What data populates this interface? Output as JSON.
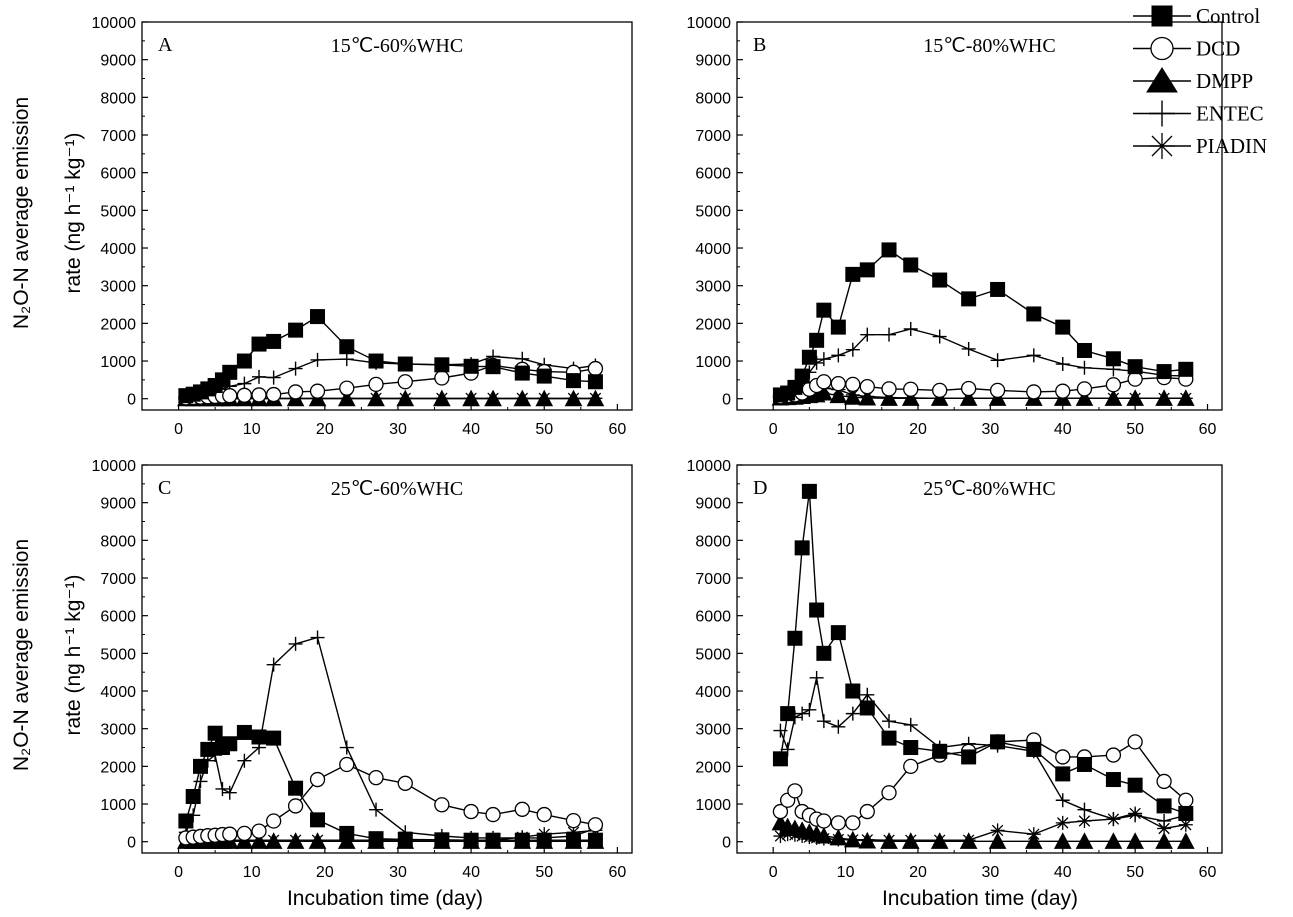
{
  "figure": {
    "ylabel_line1": "N₂O-N average emission",
    "ylabel_line2": "rate (ng h⁻¹ kg⁻¹)",
    "xlabel": "Incubation time (day)"
  },
  "legend": [
    {
      "name": "Control",
      "marker": "filled-square"
    },
    {
      "name": "DCD",
      "marker": "open-circle"
    },
    {
      "name": "DMPP",
      "marker": "filled-triangle"
    },
    {
      "name": "ENTEC",
      "marker": "plus"
    },
    {
      "name": "PIADIN",
      "marker": "asterisk"
    }
  ],
  "chart_data": [
    {
      "type": "line",
      "panel": "A",
      "title": "15℃-60%WHC",
      "xlabel": "Incubation time (day)",
      "ylabel": "N₂O-N average emission rate (ng h⁻¹ kg⁻¹)",
      "xlim": [
        -5,
        62
      ],
      "ylim": [
        -300,
        10000
      ],
      "xticks": [
        0,
        10,
        20,
        30,
        40,
        50,
        60
      ],
      "yticks": [
        0,
        1000,
        2000,
        3000,
        4000,
        5000,
        6000,
        7000,
        8000,
        9000,
        10000
      ],
      "series": [
        {
          "name": "Control",
          "x": [
            1,
            2,
            3,
            4,
            5,
            6,
            7,
            9,
            11,
            13,
            16,
            19,
            23,
            27,
            31,
            36,
            40,
            43,
            47,
            50,
            54,
            57
          ],
          "y": [
            80,
            120,
            180,
            260,
            350,
            500,
            700,
            1000,
            1450,
            1520,
            1820,
            2180,
            1380,
            1000,
            920,
            900,
            860,
            850,
            680,
            600,
            480,
            450
          ]
        },
        {
          "name": "DCD",
          "x": [
            1,
            2,
            3,
            4,
            5,
            6,
            7,
            9,
            11,
            13,
            16,
            19,
            23,
            27,
            31,
            36,
            40,
            43,
            47,
            50,
            54,
            57
          ],
          "y": [
            20,
            30,
            40,
            50,
            60,
            70,
            80,
            90,
            100,
            110,
            180,
            200,
            280,
            380,
            450,
            550,
            680,
            880,
            780,
            720,
            700,
            800
          ]
        },
        {
          "name": "DMPP",
          "x": [
            1,
            2,
            3,
            4,
            5,
            6,
            7,
            9,
            11,
            13,
            16,
            19,
            23,
            27,
            31,
            36,
            40,
            43,
            47,
            50,
            54,
            57
          ],
          "y": [
            0,
            0,
            0,
            0,
            0,
            0,
            0,
            0,
            0,
            0,
            0,
            0,
            0,
            0,
            0,
            0,
            0,
            0,
            0,
            0,
            0,
            0
          ]
        },
        {
          "name": "ENTEC",
          "x": [
            1,
            2,
            3,
            4,
            5,
            6,
            7,
            9,
            11,
            13,
            16,
            19,
            23,
            27,
            31,
            36,
            40,
            43,
            47,
            50,
            54,
            57
          ],
          "y": [
            50,
            80,
            120,
            160,
            200,
            260,
            330,
            400,
            580,
            560,
            800,
            1030,
            1050,
            950,
            920,
            900,
            920,
            1120,
            1060,
            900,
            800,
            880
          ]
        },
        {
          "name": "PIADIN",
          "x": [
            1,
            2,
            3,
            4,
            5,
            6,
            7,
            9,
            11,
            13,
            16,
            19,
            23,
            27,
            31,
            36,
            40,
            43,
            47,
            50,
            54,
            57
          ],
          "y": [
            10,
            10,
            10,
            10,
            10,
            10,
            10,
            10,
            10,
            10,
            10,
            10,
            10,
            10,
            10,
            10,
            10,
            10,
            10,
            10,
            10,
            10
          ]
        }
      ]
    },
    {
      "type": "line",
      "panel": "B",
      "title": "15℃-80%WHC",
      "xlabel": "Incubation time (day)",
      "ylabel": "N₂O-N average emission rate (ng h⁻¹ kg⁻¹)",
      "xlim": [
        -5,
        62
      ],
      "ylim": [
        -300,
        10000
      ],
      "xticks": [
        0,
        10,
        20,
        30,
        40,
        50,
        60
      ],
      "yticks": [
        0,
        1000,
        2000,
        3000,
        4000,
        5000,
        6000,
        7000,
        8000,
        9000,
        10000
      ],
      "series": [
        {
          "name": "Control",
          "x": [
            1,
            2,
            3,
            4,
            5,
            6,
            7,
            9,
            11,
            13,
            16,
            19,
            23,
            27,
            31,
            36,
            40,
            43,
            47,
            50,
            54,
            57
          ],
          "y": [
            100,
            150,
            300,
            600,
            1100,
            1550,
            2350,
            1900,
            3300,
            3420,
            3950,
            3550,
            3150,
            2650,
            2900,
            2250,
            1900,
            1280,
            1060,
            850,
            720,
            780
          ]
        },
        {
          "name": "DCD",
          "x": [
            1,
            2,
            3,
            4,
            5,
            6,
            7,
            9,
            11,
            13,
            16,
            19,
            23,
            27,
            31,
            36,
            40,
            43,
            47,
            50,
            54,
            57
          ],
          "y": [
            50,
            80,
            100,
            150,
            250,
            350,
            450,
            400,
            380,
            320,
            260,
            250,
            220,
            270,
            220,
            180,
            200,
            260,
            370,
            520,
            560,
            520
          ]
        },
        {
          "name": "DMPP",
          "x": [
            1,
            2,
            3,
            4,
            5,
            6,
            7,
            9,
            11,
            13,
            16,
            19,
            23,
            27,
            31,
            36,
            40,
            43,
            47,
            50,
            54,
            57
          ],
          "y": [
            20,
            30,
            40,
            60,
            80,
            100,
            150,
            80,
            40,
            20,
            10,
            10,
            10,
            10,
            10,
            10,
            10,
            10,
            10,
            10,
            10,
            10
          ]
        },
        {
          "name": "ENTEC",
          "x": [
            1,
            2,
            3,
            4,
            5,
            6,
            7,
            9,
            11,
            13,
            16,
            19,
            23,
            27,
            31,
            36,
            40,
            43,
            47,
            50,
            54,
            57
          ],
          "y": [
            100,
            150,
            250,
            400,
            700,
            950,
            1050,
            1150,
            1300,
            1700,
            1700,
            1850,
            1650,
            1320,
            1020,
            1150,
            920,
            820,
            780,
            730,
            620,
            600
          ]
        },
        {
          "name": "PIADIN",
          "x": [
            1,
            2,
            3,
            4,
            5,
            6,
            7,
            9,
            11,
            13,
            16,
            19,
            23,
            27,
            31,
            36,
            40,
            43,
            47,
            50,
            54,
            57
          ],
          "y": [
            10,
            40,
            120,
            200,
            270,
            300,
            280,
            240,
            100,
            60,
            30,
            20,
            10,
            10,
            10,
            10,
            10,
            10,
            10,
            10,
            10,
            10
          ]
        }
      ]
    },
    {
      "type": "line",
      "panel": "C",
      "title": "25℃-60%WHC",
      "xlabel": "Incubation time (day)",
      "ylabel": "N₂O-N average emission rate (ng h⁻¹ kg⁻¹)",
      "xlim": [
        -5,
        62
      ],
      "ylim": [
        -300,
        10000
      ],
      "xticks": [
        0,
        10,
        20,
        30,
        40,
        50,
        60
      ],
      "yticks": [
        0,
        1000,
        2000,
        3000,
        4000,
        5000,
        6000,
        7000,
        8000,
        9000,
        10000
      ],
      "series": [
        {
          "name": "Control",
          "x": [
            1,
            2,
            3,
            4,
            5,
            6,
            7,
            9,
            11,
            13,
            16,
            19,
            23,
            27,
            31,
            36,
            40,
            43,
            47,
            50,
            54,
            57
          ],
          "y": [
            550,
            1200,
            2000,
            2450,
            2880,
            2500,
            2600,
            2900,
            2780,
            2750,
            1420,
            580,
            220,
            80,
            60,
            50,
            40,
            40,
            40,
            40,
            40,
            40
          ]
        },
        {
          "name": "DCD",
          "x": [
            1,
            2,
            3,
            4,
            5,
            6,
            7,
            9,
            11,
            13,
            16,
            19,
            23,
            27,
            31,
            36,
            40,
            43,
            47,
            50,
            54,
            57
          ],
          "y": [
            100,
            120,
            140,
            160,
            170,
            190,
            200,
            220,
            280,
            550,
            950,
            1650,
            2050,
            1700,
            1550,
            980,
            800,
            720,
            860,
            720,
            560,
            450
          ]
        },
        {
          "name": "DMPP",
          "x": [
            1,
            2,
            3,
            4,
            5,
            6,
            7,
            9,
            11,
            13,
            16,
            19,
            23,
            27,
            31,
            36,
            40,
            43,
            47,
            50,
            54,
            57
          ],
          "y": [
            10,
            10,
            10,
            10,
            10,
            10,
            10,
            10,
            10,
            10,
            10,
            10,
            10,
            10,
            10,
            10,
            10,
            10,
            10,
            10,
            10,
            10
          ]
        },
        {
          "name": "ENTEC",
          "x": [
            1,
            2,
            3,
            4,
            5,
            6,
            7,
            9,
            11,
            13,
            16,
            19,
            23,
            27,
            31,
            36,
            40,
            43,
            47,
            50,
            54,
            57
          ],
          "y": [
            250,
            700,
            1600,
            2150,
            2300,
            1400,
            1300,
            2150,
            2500,
            4700,
            5250,
            5420,
            2500,
            850,
            250,
            150,
            100,
            100,
            100,
            100,
            150,
            350
          ]
        },
        {
          "name": "PIADIN",
          "x": [
            1,
            2,
            3,
            4,
            5,
            6,
            7,
            9,
            11,
            13,
            16,
            19,
            23,
            27,
            31,
            36,
            40,
            43,
            47,
            50,
            54,
            57
          ],
          "y": [
            50,
            50,
            40,
            40,
            40,
            40,
            40,
            40,
            40,
            40,
            40,
            40,
            40,
            40,
            40,
            40,
            40,
            40,
            120,
            200,
            250,
            300
          ]
        }
      ]
    },
    {
      "type": "line",
      "panel": "D",
      "title": "25℃-80%WHC",
      "xlabel": "Incubation time (day)",
      "ylabel": "N₂O-N average emission rate (ng h⁻¹ kg⁻¹)",
      "xlim": [
        -5,
        62
      ],
      "ylim": [
        -300,
        10000
      ],
      "xticks": [
        0,
        10,
        20,
        30,
        40,
        50,
        60
      ],
      "yticks": [
        0,
        1000,
        2000,
        3000,
        4000,
        5000,
        6000,
        7000,
        8000,
        9000,
        10000
      ],
      "series": [
        {
          "name": "Control",
          "x": [
            1,
            2,
            3,
            4,
            5,
            6,
            7,
            9,
            11,
            13,
            16,
            19,
            23,
            27,
            31,
            36,
            40,
            43,
            47,
            50,
            54,
            57
          ],
          "y": [
            2200,
            3400,
            5400,
            7800,
            9300,
            6150,
            5000,
            5550,
            4000,
            3550,
            2750,
            2500,
            2400,
            2250,
            2650,
            2450,
            1800,
            2050,
            1650,
            1500,
            950,
            750
          ]
        },
        {
          "name": "DCD",
          "x": [
            1,
            2,
            3,
            4,
            5,
            6,
            7,
            9,
            11,
            13,
            16,
            19,
            23,
            27,
            31,
            36,
            40,
            43,
            47,
            50,
            54,
            57
          ],
          "y": [
            800,
            1100,
            1350,
            800,
            700,
            600,
            550,
            500,
            500,
            800,
            1300,
            2000,
            2300,
            2400,
            2650,
            2700,
            2250,
            2250,
            2300,
            2650,
            1600,
            1100
          ]
        },
        {
          "name": "DMPP",
          "x": [
            1,
            2,
            3,
            4,
            5,
            6,
            7,
            9,
            11,
            13,
            16,
            19,
            23,
            27,
            31,
            36,
            40,
            43,
            47,
            50,
            54,
            57
          ],
          "y": [
            500,
            400,
            350,
            300,
            250,
            200,
            150,
            100,
            50,
            20,
            10,
            10,
            10,
            10,
            10,
            10,
            10,
            10,
            10,
            10,
            10,
            10
          ]
        },
        {
          "name": "ENTEC",
          "x": [
            1,
            2,
            3,
            4,
            5,
            6,
            7,
            9,
            11,
            13,
            16,
            19,
            23,
            27,
            31,
            36,
            40,
            43,
            47,
            50,
            54,
            57
          ],
          "y": [
            2950,
            2450,
            3300,
            3400,
            3500,
            4350,
            3200,
            3050,
            3400,
            3900,
            3200,
            3100,
            2500,
            2600,
            2550,
            2400,
            1100,
            850,
            600,
            700,
            550,
            700
          ]
        },
        {
          "name": "PIADIN",
          "x": [
            1,
            2,
            3,
            4,
            5,
            6,
            7,
            9,
            11,
            13,
            16,
            19,
            23,
            27,
            31,
            36,
            40,
            43,
            47,
            50,
            54,
            57
          ],
          "y": [
            150,
            200,
            180,
            150,
            120,
            100,
            80,
            60,
            50,
            50,
            40,
            40,
            40,
            40,
            300,
            200,
            500,
            550,
            600,
            750,
            350,
            450
          ]
        }
      ]
    }
  ]
}
